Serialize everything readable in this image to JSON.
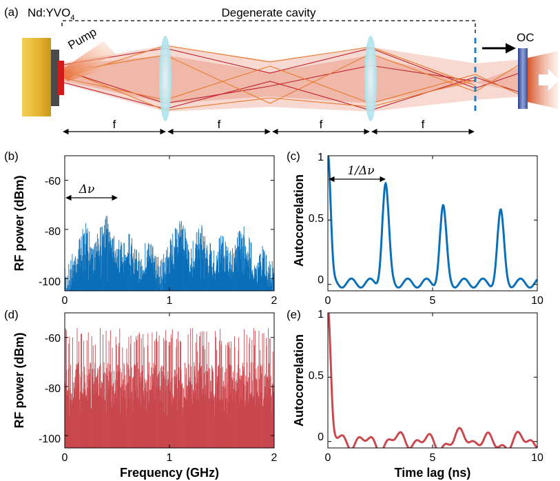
{
  "panel_labels": [
    "(a)",
    "(b)",
    "(c)",
    "(d)",
    "(e)"
  ],
  "diagram": {
    "crystal_label_main": "Nd:YVO",
    "crystal_label_sub": "4",
    "cavity_label": "Degenerate cavity",
    "pump_label": "Pump",
    "oc_label": "OC",
    "focal_labels": [
      "f",
      "f",
      "f",
      "f"
    ]
  },
  "colors": {
    "blue": "#0b6fb8",
    "red": "#c9484e",
    "lens": "#bfeaf2",
    "laser_fill": "#e8937a",
    "gold": "#e8b93a"
  },
  "annotations": {
    "b_marker": "Δν",
    "c_marker": "1/Δν"
  },
  "chart_data": [
    {
      "id": "b",
      "type": "bar",
      "xlabel": "",
      "ylabel": "RF power (dBm)",
      "xlim": [
        0,
        2
      ],
      "ylim": [
        -105,
        -50
      ],
      "xticks": [
        "0",
        "1",
        "2"
      ],
      "yticks": [
        "-60",
        "-80",
        "-100"
      ],
      "envelope_peaks_x": [
        0.2,
        0.4,
        0.6,
        0.8,
        1.1,
        1.3,
        1.5,
        1.7,
        1.9
      ],
      "peak_values": [
        -75,
        -71,
        -77,
        -80,
        -73,
        -75,
        -79,
        -75,
        -83
      ],
      "floor": -103
    },
    {
      "id": "c",
      "type": "line",
      "xlabel": "",
      "ylabel": "Autocorrelation",
      "xlim": [
        0,
        10
      ],
      "ylim": [
        -0.05,
        1.0
      ],
      "xticks": [
        "0",
        "5",
        "10"
      ],
      "yticks": [
        "1",
        "0.5",
        "0"
      ],
      "peaks": [
        {
          "x": 0,
          "y": 1.0
        },
        {
          "x": 2.75,
          "y": 0.76
        },
        {
          "x": 5.5,
          "y": 0.58
        },
        {
          "x": 8.25,
          "y": 0.54
        }
      ]
    },
    {
      "id": "d",
      "type": "bar",
      "xlabel": "Frequency (GHz)",
      "ylabel": "RF power (dBm)",
      "xlim": [
        0,
        2
      ],
      "ylim": [
        -105,
        -50
      ],
      "xticks": [
        "0",
        "1",
        "2"
      ],
      "yticks": [
        "-60",
        "-80",
        "-100"
      ],
      "floor": -103
    },
    {
      "id": "e",
      "type": "line",
      "xlabel": "Time lag (ns)",
      "ylabel": "Autocorrelation",
      "xlim": [
        0,
        10
      ],
      "ylim": [
        -0.05,
        1.0
      ],
      "xticks": [
        "0",
        "5",
        "10"
      ],
      "yticks": [
        "1",
        "0.5",
        "0"
      ],
      "peaks": [
        {
          "x": 0,
          "y": 1.0
        }
      ]
    }
  ]
}
